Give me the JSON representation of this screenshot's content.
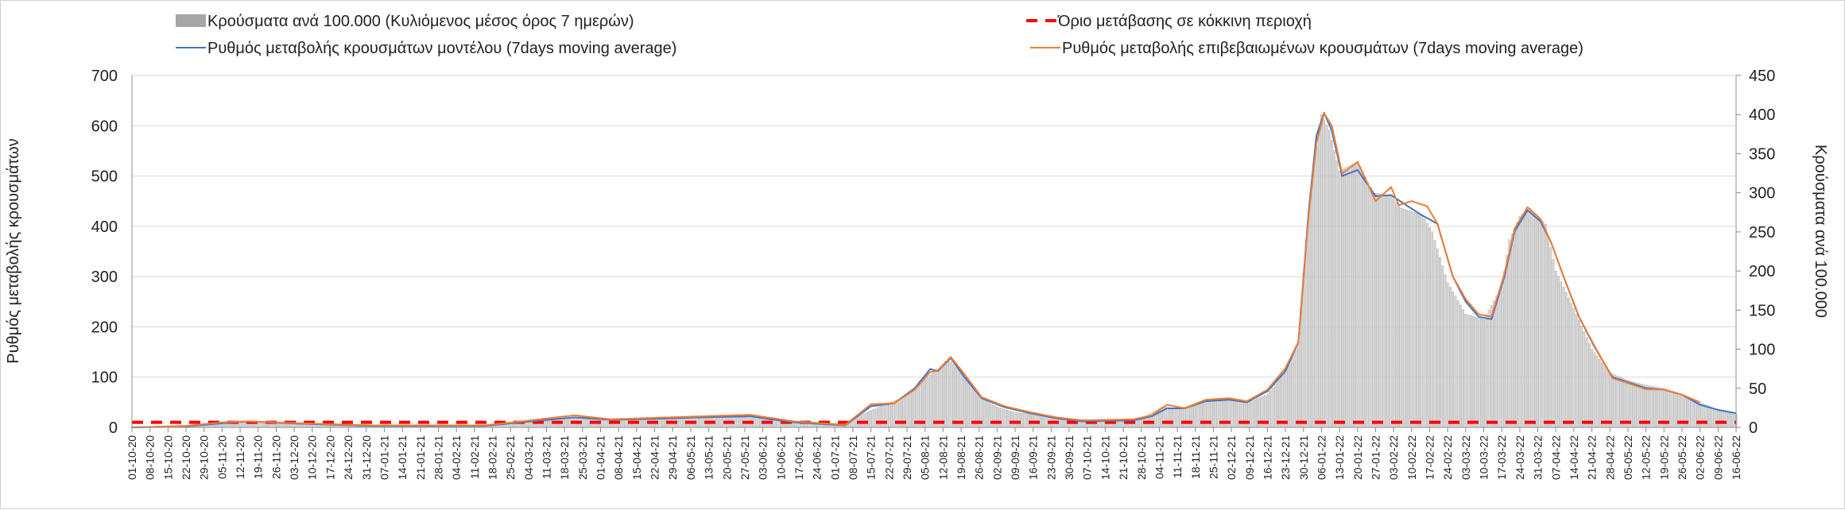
{
  "chart_data": {
    "type": "bar+line",
    "title": "",
    "ylabel_left": "Ρυθμός μεταβολής κρουσμάτων",
    "ylabel_right": "Κρούσματα ανά 100.000",
    "ylim_left": [
      0,
      700
    ],
    "ylim_right": [
      0,
      450
    ],
    "yticks_left": [
      "0",
      "100",
      "200",
      "300",
      "400",
      "500",
      "600",
      "700"
    ],
    "yticks_right": [
      "0",
      "50",
      "100",
      "150",
      "200",
      "250",
      "300",
      "350",
      "400",
      "450"
    ],
    "x_start_date": "2020-10-01",
    "x_end_date": "2022-06-16",
    "x_tick_labels": [
      "01-10-20",
      "08-10-20",
      "15-10-20",
      "22-10-20",
      "29-10-20",
      "05-11-20",
      "12-11-20",
      "19-11-20",
      "26-11-20",
      "03-12-20",
      "10-12-20",
      "17-12-20",
      "24-12-20",
      "31-12-20",
      "07-01-21",
      "14-01-21",
      "21-01-21",
      "28-01-21",
      "04-02-21",
      "11-02-21",
      "18-02-21",
      "25-02-21",
      "04-03-21",
      "11-03-21",
      "18-03-21",
      "25-03-21",
      "01-04-21",
      "08-04-21",
      "15-04-21",
      "22-04-21",
      "29-04-21",
      "06-05-21",
      "13-05-21",
      "20-05-21",
      "27-05-21",
      "03-06-21",
      "10-06-21",
      "17-06-21",
      "24-06-21",
      "01-07-21",
      "08-07-21",
      "15-07-21",
      "22-07-21",
      "29-07-21",
      "05-08-21",
      "12-08-21",
      "19-08-21",
      "26-08-21",
      "02-09-21",
      "09-09-21",
      "16-09-21",
      "23-09-21",
      "30-09-21",
      "07-10-21",
      "14-10-21",
      "21-10-21",
      "28-10-21",
      "04-11-21",
      "11-11-21",
      "18-11-21",
      "25-11-21",
      "02-12-21",
      "09-12-21",
      "16-12-21",
      "23-12-21",
      "30-12-21",
      "06-01-22",
      "13-01-22",
      "20-01-22",
      "27-01-22",
      "03-02-22",
      "10-02-22",
      "17-02-22",
      "24-02-22",
      "03-03-22",
      "10-03-22",
      "17-03-22",
      "24-03-22",
      "31-03-22",
      "07-04-22",
      "14-04-22",
      "21-04-22",
      "28-04-22",
      "05-05-22",
      "12-05-22",
      "19-05-22",
      "26-05-22",
      "02-06-22",
      "09-06-22",
      "16-06-22"
    ],
    "series": [
      {
        "name": "Κρούσματα ανά 100.000 (Κυλιόμενος μέσος όρος 7 ημερών)",
        "type": "bar",
        "axis": "right",
        "color": "#a6a6a6",
        "points": [
          [
            "2020-10-01",
            1
          ],
          [
            "2020-10-20",
            2
          ],
          [
            "2020-10-29",
            4
          ],
          [
            "2020-11-10",
            8
          ],
          [
            "2020-11-24",
            6
          ],
          [
            "2020-12-10",
            4
          ],
          [
            "2021-01-10",
            2
          ],
          [
            "2021-02-10",
            2
          ],
          [
            "2021-02-25",
            4
          ],
          [
            "2021-03-05",
            8
          ],
          [
            "2021-03-22",
            13
          ],
          [
            "2021-04-05",
            11
          ],
          [
            "2021-04-20",
            12
          ],
          [
            "2021-05-10",
            12
          ],
          [
            "2021-05-27",
            13
          ],
          [
            "2021-06-10",
            8
          ],
          [
            "2021-06-28",
            3
          ],
          [
            "2021-07-05",
            4
          ],
          [
            "2021-07-12",
            17
          ],
          [
            "2021-07-20",
            29
          ],
          [
            "2021-07-29",
            40
          ],
          [
            "2021-08-05",
            62
          ],
          [
            "2021-08-09",
            72
          ],
          [
            "2021-08-14",
            88
          ],
          [
            "2021-08-19",
            70
          ],
          [
            "2021-08-26",
            40
          ],
          [
            "2021-09-02",
            26
          ],
          [
            "2021-09-09",
            19
          ],
          [
            "2021-09-16",
            17
          ],
          [
            "2021-09-23",
            13
          ],
          [
            "2021-10-01",
            10
          ],
          [
            "2021-10-20",
            10
          ],
          [
            "2021-10-28",
            11
          ],
          [
            "2021-11-05",
            26
          ],
          [
            "2021-11-12",
            24
          ],
          [
            "2021-11-20",
            33
          ],
          [
            "2021-11-30",
            37
          ],
          [
            "2021-12-10",
            34
          ],
          [
            "2021-12-16",
            42
          ],
          [
            "2021-12-23",
            73
          ],
          [
            "2021-12-28",
            110
          ],
          [
            "2021-12-31",
            240
          ],
          [
            "2022-01-04",
            360
          ],
          [
            "2022-01-06",
            400
          ],
          [
            "2022-01-09",
            380
          ],
          [
            "2022-01-13",
            328
          ],
          [
            "2022-01-20",
            340
          ],
          [
            "2022-01-26",
            300
          ],
          [
            "2022-02-02",
            296
          ],
          [
            "2022-02-06",
            280
          ],
          [
            "2022-02-14",
            272
          ],
          [
            "2022-02-18",
            250
          ],
          [
            "2022-02-24",
            185
          ],
          [
            "2022-03-03",
            145
          ],
          [
            "2022-03-10",
            138
          ],
          [
            "2022-03-17",
            180
          ],
          [
            "2022-03-20",
            240
          ],
          [
            "2022-03-24",
            270
          ],
          [
            "2022-03-28",
            280
          ],
          [
            "2022-04-03",
            260
          ],
          [
            "2022-04-07",
            200
          ],
          [
            "2022-04-14",
            152
          ],
          [
            "2022-04-21",
            100
          ],
          [
            "2022-04-28",
            70
          ],
          [
            "2022-05-05",
            60
          ],
          [
            "2022-05-12",
            54
          ],
          [
            "2022-05-19",
            50
          ],
          [
            "2022-05-26",
            42
          ],
          [
            "2022-06-02",
            32
          ],
          [
            "2022-06-09",
            22
          ],
          [
            "2022-06-16",
            16
          ]
        ]
      },
      {
        "name": "Ρυθμός μεταβολής κρουσμάτων μοντέλου (7days moving average)",
        "type": "line",
        "axis": "left",
        "color": "#4472c4",
        "points": [
          [
            "2020-10-01",
            0
          ],
          [
            "2020-10-22",
            2
          ],
          [
            "2020-11-05",
            8
          ],
          [
            "2020-11-15",
            12
          ],
          [
            "2020-12-01",
            8
          ],
          [
            "2021-01-01",
            3
          ],
          [
            "2021-02-15",
            3
          ],
          [
            "2021-03-05",
            12
          ],
          [
            "2021-03-22",
            20
          ],
          [
            "2021-04-05",
            15
          ],
          [
            "2021-04-22",
            17
          ],
          [
            "2021-05-10",
            20
          ],
          [
            "2021-05-29",
            22
          ],
          [
            "2021-06-15",
            10
          ],
          [
            "2021-07-05",
            4
          ],
          [
            "2021-07-15",
            42
          ],
          [
            "2021-07-24",
            48
          ],
          [
            "2021-08-01",
            78
          ],
          [
            "2021-08-07",
            116
          ],
          [
            "2021-08-10",
            112
          ],
          [
            "2021-08-15",
            138
          ],
          [
            "2021-08-20",
            102
          ],
          [
            "2021-08-27",
            58
          ],
          [
            "2021-09-05",
            40
          ],
          [
            "2021-09-15",
            28
          ],
          [
            "2021-09-25",
            18
          ],
          [
            "2021-10-05",
            12
          ],
          [
            "2021-10-15",
            13
          ],
          [
            "2021-10-25",
            14
          ],
          [
            "2021-11-01",
            22
          ],
          [
            "2021-11-07",
            38
          ],
          [
            "2021-11-14",
            38
          ],
          [
            "2021-11-22",
            52
          ],
          [
            "2021-12-01",
            55
          ],
          [
            "2021-12-08",
            50
          ],
          [
            "2021-12-16",
            72
          ],
          [
            "2021-12-23",
            112
          ],
          [
            "2021-12-28",
            170
          ],
          [
            "2022-01-01",
            430
          ],
          [
            "2022-01-04",
            580
          ],
          [
            "2022-01-07",
            626
          ],
          [
            "2022-01-10",
            590
          ],
          [
            "2022-01-14",
            500
          ],
          [
            "2022-01-20",
            512
          ],
          [
            "2022-01-27",
            460
          ],
          [
            "2022-02-02",
            462
          ],
          [
            "2022-02-07",
            445
          ],
          [
            "2022-02-14",
            422
          ],
          [
            "2022-02-20",
            405
          ],
          [
            "2022-02-26",
            300
          ],
          [
            "2022-03-03",
            250
          ],
          [
            "2022-03-08",
            220
          ],
          [
            "2022-03-13",
            215
          ],
          [
            "2022-03-18",
            300
          ],
          [
            "2022-03-22",
            390
          ],
          [
            "2022-03-27",
            432
          ],
          [
            "2022-04-01",
            410
          ],
          [
            "2022-04-05",
            370
          ],
          [
            "2022-04-10",
            300
          ],
          [
            "2022-04-16",
            220
          ],
          [
            "2022-04-22",
            160
          ],
          [
            "2022-04-29",
            100
          ],
          [
            "2022-05-05",
            90
          ],
          [
            "2022-05-12",
            78
          ],
          [
            "2022-05-19",
            75
          ],
          [
            "2022-05-26",
            65
          ],
          [
            "2022-06-02",
            45
          ],
          [
            "2022-06-09",
            35
          ],
          [
            "2022-06-16",
            28
          ]
        ]
      },
      {
        "name": "Ρυθμός μεταβολής επιβεβαιωμένων κρουσμάτων (7days moving average)",
        "type": "line",
        "axis": "left",
        "color": "#ed7d31",
        "points": [
          [
            "2020-10-01",
            0
          ],
          [
            "2020-10-22",
            3
          ],
          [
            "2020-11-05",
            10
          ],
          [
            "2020-11-15",
            12
          ],
          [
            "2020-12-01",
            9
          ],
          [
            "2021-01-01",
            4
          ],
          [
            "2021-02-15",
            4
          ],
          [
            "2021-03-05",
            14
          ],
          [
            "2021-03-22",
            24
          ],
          [
            "2021-04-05",
            16
          ],
          [
            "2021-04-22",
            19
          ],
          [
            "2021-05-10",
            22
          ],
          [
            "2021-05-29",
            25
          ],
          [
            "2021-06-15",
            12
          ],
          [
            "2021-07-05",
            5
          ],
          [
            "2021-07-15",
            46
          ],
          [
            "2021-07-24",
            48
          ],
          [
            "2021-08-01",
            75
          ],
          [
            "2021-08-07",
            110
          ],
          [
            "2021-08-10",
            113
          ],
          [
            "2021-08-15",
            140
          ],
          [
            "2021-08-20",
            108
          ],
          [
            "2021-08-27",
            60
          ],
          [
            "2021-09-05",
            42
          ],
          [
            "2021-09-15",
            30
          ],
          [
            "2021-09-25",
            20
          ],
          [
            "2021-10-05",
            14
          ],
          [
            "2021-10-15",
            15
          ],
          [
            "2021-10-25",
            16
          ],
          [
            "2021-11-01",
            24
          ],
          [
            "2021-11-07",
            45
          ],
          [
            "2021-11-14",
            38
          ],
          [
            "2021-11-22",
            55
          ],
          [
            "2021-12-01",
            58
          ],
          [
            "2021-12-08",
            52
          ],
          [
            "2021-12-16",
            75
          ],
          [
            "2021-12-23",
            118
          ],
          [
            "2021-12-28",
            170
          ],
          [
            "2022-01-01",
            420
          ],
          [
            "2022-01-04",
            565
          ],
          [
            "2022-01-07",
            625
          ],
          [
            "2022-01-10",
            600
          ],
          [
            "2022-01-14",
            505
          ],
          [
            "2022-01-20",
            528
          ],
          [
            "2022-01-27",
            450
          ],
          [
            "2022-02-02",
            478
          ],
          [
            "2022-02-05",
            442
          ],
          [
            "2022-02-10",
            450
          ],
          [
            "2022-02-16",
            440
          ],
          [
            "2022-02-20",
            405
          ],
          [
            "2022-02-26",
            300
          ],
          [
            "2022-03-03",
            255
          ],
          [
            "2022-03-08",
            225
          ],
          [
            "2022-03-13",
            220
          ],
          [
            "2022-03-18",
            305
          ],
          [
            "2022-03-22",
            395
          ],
          [
            "2022-03-27",
            438
          ],
          [
            "2022-04-01",
            415
          ],
          [
            "2022-04-05",
            370
          ],
          [
            "2022-04-10",
            300
          ],
          [
            "2022-04-16",
            220
          ],
          [
            "2022-04-22",
            162
          ],
          [
            "2022-04-29",
            98
          ],
          [
            "2022-05-05",
            88
          ],
          [
            "2022-05-12",
            76
          ],
          [
            "2022-05-19",
            75
          ],
          [
            "2022-05-26",
            65
          ],
          [
            "2022-06-02",
            50
          ]
        ]
      },
      {
        "name": "Όριο μετάβασης σε κόκκινη περιοχή",
        "type": "line",
        "axis": "left",
        "style": "dashed",
        "color": "#ff0000",
        "value": 10
      }
    ],
    "legend": "top"
  }
}
